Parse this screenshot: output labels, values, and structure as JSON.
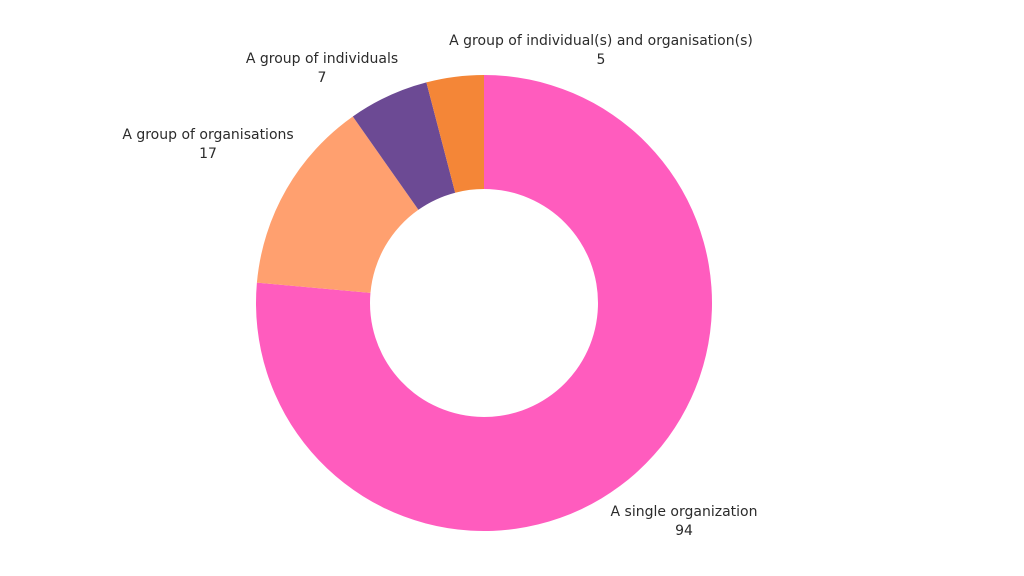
{
  "chart_data": {
    "type": "pie",
    "donut": true,
    "slices": [
      {
        "label": "A single organization",
        "value": 94,
        "color": "#FF5CBE"
      },
      {
        "label": "A group of organisations",
        "value": 17,
        "color": "#FFA06F"
      },
      {
        "label": "A group of individuals",
        "value": 7,
        "color": "#6C4A94"
      },
      {
        "label": "A group of individual(s) and organisation(s)",
        "value": 5,
        "color": "#F48637"
      }
    ]
  }
}
